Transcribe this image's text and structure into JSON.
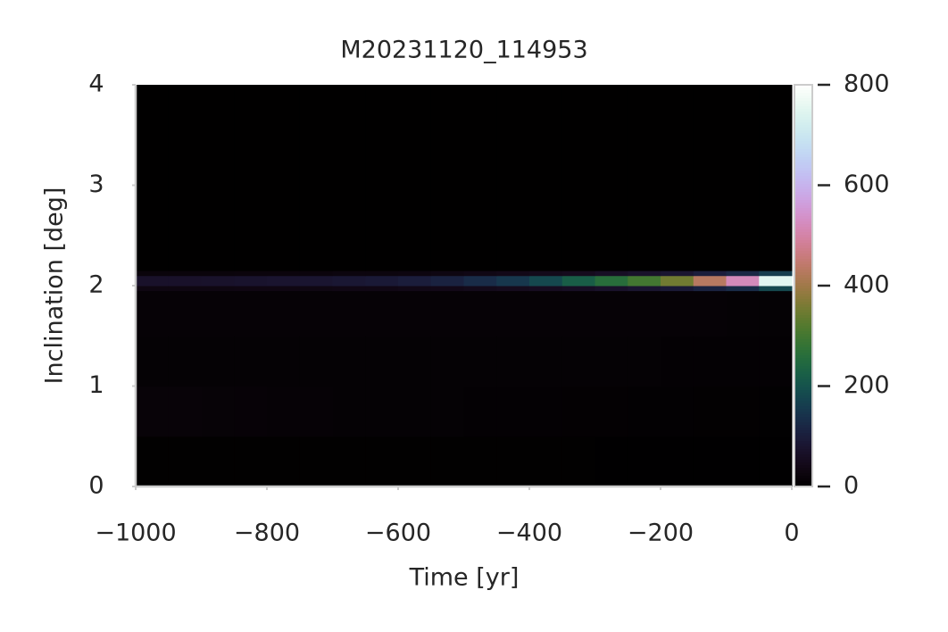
{
  "chart_data": {
    "type": "heatmap",
    "title": "M20231120_114953",
    "xlabel": "Time [yr]",
    "ylabel": "Inclination [deg]",
    "colormap": "cubehelix",
    "x_bins": [
      -1000,
      -950,
      -900,
      -850,
      -800,
      -750,
      -700,
      -650,
      -600,
      -550,
      -500,
      -450,
      -400,
      -350,
      -300,
      -250,
      -200,
      -150,
      -100,
      -50,
      0
    ],
    "y_bins": [
      0,
      0.5,
      1,
      1.5,
      1.95,
      2.0,
      2.1,
      2.15,
      4
    ],
    "z": [
      [
        3,
        3,
        3,
        3,
        3,
        3,
        3,
        3,
        3,
        3,
        3,
        3,
        3,
        3,
        2,
        2,
        2,
        2,
        2,
        2
      ],
      [
        16,
        15,
        14,
        13,
        12,
        11,
        10,
        10,
        9,
        9,
        8,
        8,
        8,
        7,
        7,
        6,
        6,
        5,
        5,
        4
      ],
      [
        10,
        10,
        10,
        10,
        10,
        10,
        10,
        10,
        10,
        10,
        10,
        10,
        9,
        9,
        9,
        9,
        8,
        8,
        8,
        8
      ],
      [
        12,
        12,
        12,
        12,
        12,
        12,
        12,
        12,
        12,
        12,
        12,
        12,
        12,
        12,
        12,
        12,
        11,
        11,
        10,
        10
      ],
      [
        30,
        30,
        30,
        32,
        32,
        33,
        35,
        35,
        38,
        40,
        45,
        50,
        55,
        60,
        70,
        80,
        90,
        110,
        130,
        180
      ],
      [
        70,
        70,
        72,
        75,
        78,
        80,
        85,
        90,
        100,
        110,
        130,
        150,
        180,
        220,
        260,
        300,
        350,
        430,
        520,
        750
      ],
      [
        20,
        20,
        20,
        22,
        22,
        22,
        25,
        25,
        28,
        30,
        35,
        40,
        45,
        50,
        60,
        70,
        80,
        100,
        120,
        160
      ],
      [
        1,
        1,
        1,
        1,
        1,
        1,
        1,
        1,
        1,
        1,
        1,
        1,
        1,
        1,
        1,
        1,
        1,
        1,
        1,
        1
      ]
    ],
    "xlim": [
      -1000,
      0
    ],
    "xticks": [
      {
        "value": -1000,
        "label": "−1000"
      },
      {
        "value": -800,
        "label": "−800"
      },
      {
        "value": -600,
        "label": "−600"
      },
      {
        "value": -400,
        "label": "−400"
      },
      {
        "value": -200,
        "label": "−200"
      },
      0
    ],
    "ylim": [
      0,
      4
    ],
    "yticks": [
      0,
      1,
      2,
      3,
      4
    ],
    "clim": [
      0,
      800
    ],
    "cticks": [
      0,
      200,
      400,
      600,
      800
    ]
  }
}
